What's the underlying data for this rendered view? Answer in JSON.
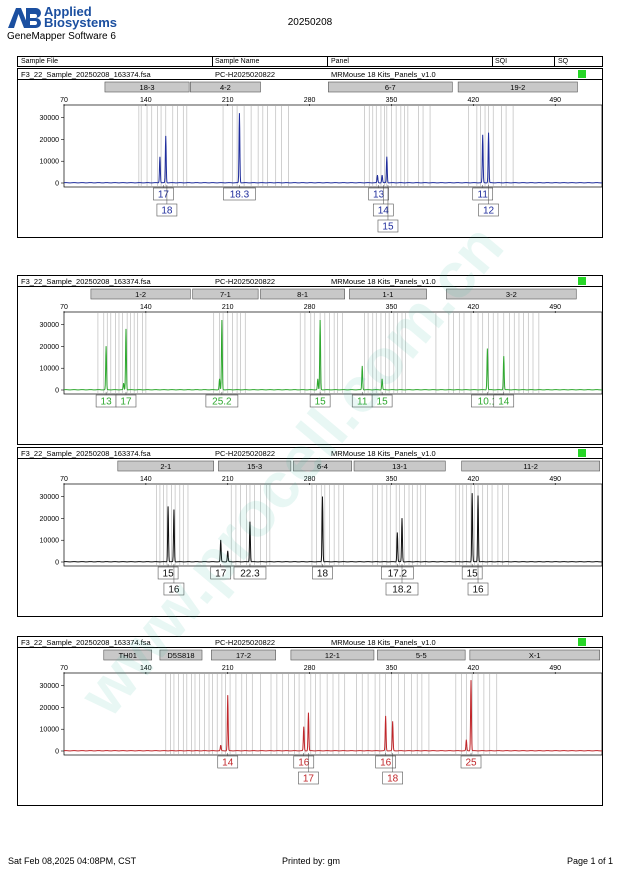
{
  "header": {
    "logo_line1": "Applied",
    "logo_line2": "Biosystems",
    "software": "GeneMapper Software 6",
    "run_id": "20250208"
  },
  "table_header": {
    "sample_file": "Sample File",
    "sample_name": "Sample Name",
    "panel": "Panel",
    "sqi": "SQI",
    "sq": "SQ"
  },
  "colors": {
    "blue": "#1f2d9c",
    "green": "#2fa82f",
    "black": "#111111",
    "red": "#c0262a",
    "quality": "#27d627"
  },
  "chart_data": [
    {
      "type": "line",
      "color": "blue",
      "file": "F3_22_Sample_20250208_163374.fsa",
      "sample_name": "PC-H2025020822",
      "panel": "MRMouse 18 Kits_Panels_v1.0",
      "x_ticks": [
        70,
        140,
        210,
        280,
        350,
        420,
        490
      ],
      "y_ticks": [
        0,
        10000,
        20000,
        30000
      ],
      "xlim": [
        70,
        530
      ],
      "ylim": [
        0,
        34000
      ],
      "markers": [
        {
          "label": "18-3",
          "start": 105,
          "end": 177
        },
        {
          "label": "4-2",
          "start": 178,
          "end": 238
        },
        {
          "label": "6-7",
          "start": 296,
          "end": 402
        },
        {
          "label": "19-2",
          "start": 407,
          "end": 509
        }
      ],
      "bins": [
        134,
        136,
        141,
        145,
        150,
        153,
        157,
        163,
        167,
        172,
        175,
        206,
        214,
        218,
        224,
        230,
        236,
        240,
        244,
        251,
        256,
        262,
        327,
        331,
        334,
        337,
        341,
        344,
        346,
        350,
        354,
        358,
        361,
        364,
        373,
        377,
        383,
        416,
        423,
        426,
        430,
        433,
        437,
        444,
        448,
        454
      ],
      "peaks": [
        {
          "x": 152,
          "height": 12000
        },
        {
          "x": 157,
          "height": 21500
        },
        {
          "x": 220,
          "height": 32000
        },
        {
          "x": 338,
          "height": 3500
        },
        {
          "x": 342,
          "height": 3500
        },
        {
          "x": 346,
          "height": 12000
        },
        {
          "x": 428,
          "height": 22000
        },
        {
          "x": 433,
          "height": 23000
        }
      ],
      "alleles": [
        {
          "text": "17",
          "x": 155,
          "row": 0
        },
        {
          "text": "18",
          "x": 158,
          "row": 1
        },
        {
          "text": "18.3",
          "x": 220,
          "row": 0
        },
        {
          "text": "13",
          "x": 339,
          "row": 0
        },
        {
          "text": "14",
          "x": 343,
          "row": 1
        },
        {
          "text": "15",
          "x": 347,
          "row": 2
        },
        {
          "text": "11",
          "x": 428,
          "row": 0
        },
        {
          "text": "12",
          "x": 433,
          "row": 1
        }
      ]
    },
    {
      "type": "line",
      "color": "green",
      "file": "F3_22_Sample_20250208_163374.fsa",
      "sample_name": "PC-H2025020822",
      "panel": "MRMouse 18 Kits_Panels_v1.0",
      "x_ticks": [
        70,
        140,
        210,
        280,
        350,
        420,
        490
      ],
      "y_ticks": [
        0,
        10000,
        20000,
        30000
      ],
      "xlim": [
        70,
        530
      ],
      "ylim": [
        0,
        34000
      ],
      "markers": [
        {
          "label": "1-2",
          "start": 93,
          "end": 178
        },
        {
          "label": "7-1",
          "start": 180,
          "end": 236
        },
        {
          "label": "8-1",
          "start": 238,
          "end": 310
        },
        {
          "label": "1-1",
          "start": 314,
          "end": 380
        },
        {
          "label": "3-2",
          "start": 397,
          "end": 508
        }
      ],
      "bins": [
        99,
        104,
        107,
        110,
        114,
        117,
        120,
        124,
        127,
        130,
        133,
        137,
        140,
        198,
        203,
        206,
        210,
        214,
        218,
        221,
        225,
        272,
        276,
        281,
        284,
        289,
        293,
        297,
        301,
        304,
        308,
        327,
        330,
        334,
        337,
        341,
        345,
        348,
        352,
        355,
        359,
        362,
        388,
        399,
        403,
        408,
        412,
        418,
        424,
        428,
        433,
        437,
        441,
        446,
        451,
        455,
        459,
        463,
        467,
        471,
        476
      ],
      "peaks": [
        {
          "x": 106,
          "height": 20000
        },
        {
          "x": 123,
          "height": 28000
        },
        {
          "x": 121,
          "height": 3000
        },
        {
          "x": 203,
          "height": 5000
        },
        {
          "x": 205,
          "height": 32000
        },
        {
          "x": 287,
          "height": 5000
        },
        {
          "x": 289,
          "height": 32000
        },
        {
          "x": 325,
          "height": 11000
        },
        {
          "x": 342,
          "height": 5000
        },
        {
          "x": 432,
          "height": 19000
        },
        {
          "x": 446,
          "height": 15500
        }
      ],
      "alleles": [
        {
          "text": "13",
          "x": 106,
          "row": 0
        },
        {
          "text": "17",
          "x": 123,
          "row": 0
        },
        {
          "text": "25.2",
          "x": 205,
          "row": 0
        },
        {
          "text": "15",
          "x": 289,
          "row": 0
        },
        {
          "text": "11",
          "x": 325,
          "row": 0
        },
        {
          "text": "15",
          "x": 342,
          "row": 0
        },
        {
          "text": "10.1",
          "x": 432,
          "row": 0
        },
        {
          "text": "14",
          "x": 446,
          "row": 0
        }
      ]
    },
    {
      "type": "line",
      "color": "black",
      "file": "F3_22_Sample_20250208_163374.fsa",
      "sample_name": "PC-H2025020822",
      "panel": "MRMouse 18 Kits_Panels_v1.0",
      "x_ticks": [
        70,
        140,
        210,
        280,
        350,
        420,
        490
      ],
      "y_ticks": [
        0,
        10000,
        20000,
        30000
      ],
      "xlim": [
        70,
        530
      ],
      "ylim": [
        0,
        34000
      ],
      "markers": [
        {
          "label": "2-1",
          "start": 116,
          "end": 198
        },
        {
          "label": "15-3",
          "start": 202,
          "end": 264
        },
        {
          "label": "6-4",
          "start": 266,
          "end": 316
        },
        {
          "label": "13-1",
          "start": 318,
          "end": 396
        },
        {
          "label": "11-2",
          "start": 410,
          "end": 528
        }
      ],
      "bins": [
        149,
        152,
        155,
        158,
        162,
        165,
        169,
        172,
        176,
        213,
        217,
        221,
        226,
        229,
        233,
        238,
        243,
        246,
        282,
        286,
        290,
        293,
        297,
        301,
        305,
        309,
        334,
        338,
        342,
        346,
        349,
        354,
        357,
        361,
        365,
        368,
        372,
        375,
        379,
        405,
        408,
        411,
        414,
        418,
        421,
        424,
        428,
        432,
        436,
        441,
        445,
        450
      ],
      "peaks": [
        {
          "x": 159,
          "height": 25500
        },
        {
          "x": 164,
          "height": 24000
        },
        {
          "x": 204,
          "height": 10000
        },
        {
          "x": 210,
          "height": 5000
        },
        {
          "x": 229,
          "height": 18500
        },
        {
          "x": 291,
          "height": 30000
        },
        {
          "x": 355,
          "height": 13500
        },
        {
          "x": 359,
          "height": 20000
        },
        {
          "x": 419,
          "height": 31500
        },
        {
          "x": 424,
          "height": 30500
        }
      ],
      "alleles": [
        {
          "text": "15",
          "x": 159,
          "row": 0
        },
        {
          "text": "16",
          "x": 164,
          "row": 1
        },
        {
          "text": "17",
          "x": 204,
          "row": 0
        },
        {
          "text": "22.3",
          "x": 229,
          "row": 0
        },
        {
          "text": "18",
          "x": 291,
          "row": 0
        },
        {
          "text": "17.2",
          "x": 355,
          "row": 0
        },
        {
          "text": "18.2",
          "x": 359,
          "row": 1
        },
        {
          "text": "15",
          "x": 419,
          "row": 0
        },
        {
          "text": "16",
          "x": 424,
          "row": 1
        }
      ]
    },
    {
      "type": "line",
      "color": "red",
      "file": "F3_22_Sample_20250208_163374.fsa",
      "sample_name": "PC-H2025020822",
      "panel": "MRMouse 18 Kits_Panels_v1.0",
      "x_ticks": [
        70,
        140,
        210,
        280,
        350,
        420,
        490
      ],
      "y_ticks": [
        0,
        10000,
        20000,
        30000
      ],
      "xlim": [
        70,
        530
      ],
      "ylim": [
        0,
        34000
      ],
      "markers": [
        {
          "label": "TH01",
          "start": 104,
          "end": 145
        },
        {
          "label": "D5S818",
          "start": 152,
          "end": 188
        },
        {
          "label": "17-2",
          "start": 196,
          "end": 251
        },
        {
          "label": "12-1",
          "start": 264,
          "end": 335
        },
        {
          "label": "5-5",
          "start": 338,
          "end": 413
        },
        {
          "label": "X-1",
          "start": 417,
          "end": 528
        }
      ],
      "bins": [
        157,
        161,
        164,
        168,
        172,
        175,
        179,
        182,
        186,
        190,
        194,
        197,
        201,
        205,
        208,
        212,
        217,
        222,
        226,
        231,
        238,
        247,
        252,
        257,
        262,
        267,
        271,
        276,
        281,
        285,
        289,
        295,
        300,
        305,
        310,
        320,
        325,
        330,
        336,
        340,
        345,
        350,
        356,
        361,
        367,
        372,
        376,
        382,
        405,
        410,
        414,
        419,
        424,
        429,
        434,
        440
      ],
      "peaks": [
        {
          "x": 204,
          "height": 2500
        },
        {
          "x": 210,
          "height": 25500
        },
        {
          "x": 275,
          "height": 11000
        },
        {
          "x": 279,
          "height": 17500
        },
        {
          "x": 345,
          "height": 16000
        },
        {
          "x": 351,
          "height": 13500
        },
        {
          "x": 414,
          "height": 5000
        },
        {
          "x": 418,
          "height": 32500
        }
      ],
      "alleles": [
        {
          "text": "14",
          "x": 210,
          "row": 0
        },
        {
          "text": "16",
          "x": 275,
          "row": 0
        },
        {
          "text": "17",
          "x": 279,
          "row": 1
        },
        {
          "text": "16",
          "x": 345,
          "row": 0
        },
        {
          "text": "18",
          "x": 351,
          "row": 1
        },
        {
          "text": "25",
          "x": 418,
          "row": 0
        }
      ]
    }
  ],
  "footer": {
    "datetime": "Sat Feb 08,2025 04:08PM, CST",
    "printed_by": "Printed by: gm",
    "page": "Page 1 of 1"
  },
  "watermark": "www.procell.com.cn"
}
